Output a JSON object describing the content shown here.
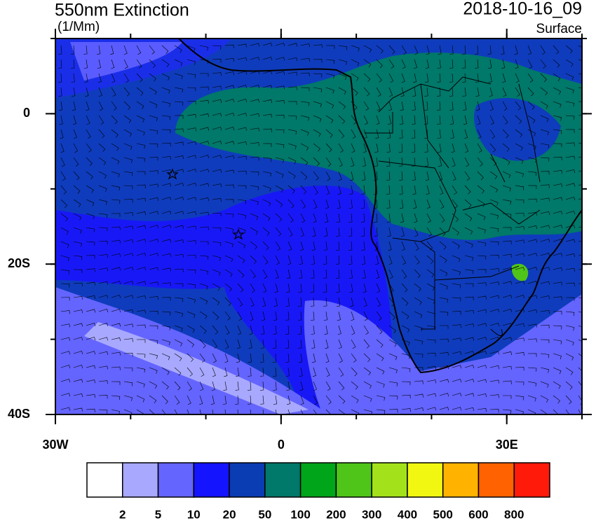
{
  "title": "550nm Extinction",
  "units": "(1/Mm)",
  "date": "2018-10-16_09",
  "level": "Surface",
  "map": {
    "lonlim": [
      -30,
      40
    ],
    "latlim": [
      -40,
      10
    ],
    "lon_ticks": [
      {
        "value": -30,
        "label": "30W"
      },
      0,
      {
        "value": 30,
        "label": "30E"
      }
    ],
    "lat_ticks": [
      0,
      {
        "value": -20,
        "label": "20S"
      },
      {
        "value": -40,
        "label": "40S"
      }
    ],
    "minor_step": 10
  },
  "colorbar": {
    "colors": [
      "#ffffff",
      "#a8a8ff",
      "#6464ff",
      "#1414ff",
      "#0a3cb4",
      "#00786a",
      "#00a51a",
      "#4fc419",
      "#a3e21a",
      "#f2f712",
      "#ffb300",
      "#ff6200",
      "#ff1a0a"
    ],
    "levels": [
      2,
      5,
      10,
      20,
      50,
      100,
      200,
      300,
      400,
      500,
      600,
      800
    ]
  }
}
